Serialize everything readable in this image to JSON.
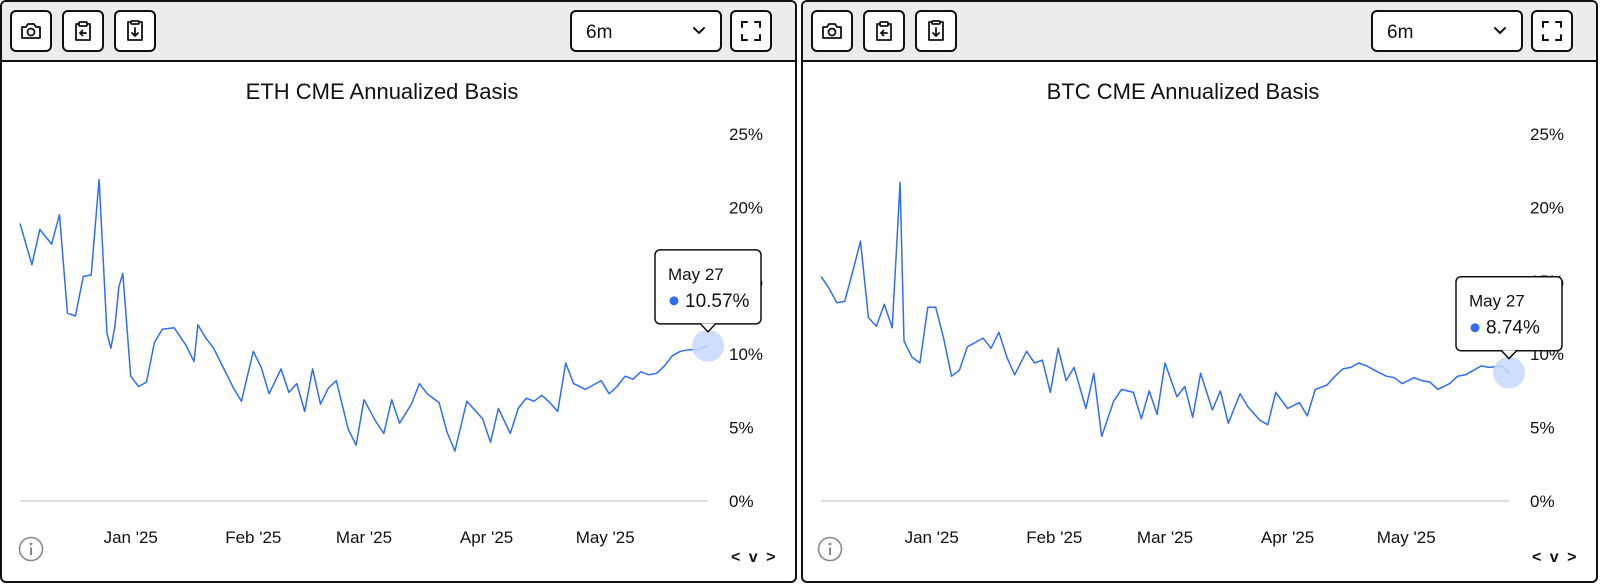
{
  "toolbar": {
    "icons": [
      "camera-icon",
      "clipboard-copy-icon",
      "file-download-icon",
      "fullscreen-icon"
    ],
    "range_select_value": "6m"
  },
  "footer": {
    "info_icon": "info-icon",
    "nav_label": "< v >"
  },
  "colors": {
    "line": "#2f6df5",
    "highlight": "#c7d8fb",
    "baseline": "#bbbbbb"
  },
  "chart_data": [
    {
      "type": "line",
      "title": "ETH CME Annualized Basis",
      "yticks": [
        "25%",
        "20%",
        "15%",
        "10%",
        "5%",
        "0%"
      ],
      "ylim": [
        0,
        25
      ],
      "xlim": [
        "2024-12-04",
        "2025-05-27"
      ],
      "xticks": [
        {
          "date": "2025-01-01",
          "label": "Jan '25"
        },
        {
          "date": "2025-02-01",
          "label": "Feb '25"
        },
        {
          "date": "2025-03-01",
          "label": "Mar '25"
        },
        {
          "date": "2025-04-01",
          "label": "Apr '25"
        },
        {
          "date": "2025-05-01",
          "label": "May '25"
        }
      ],
      "tooltip": {
        "date_label": "May 27",
        "value_label": "10.57%"
      },
      "series": [
        {
          "x": [
            "2024-12-04",
            "2024-12-07",
            "2024-12-09",
            "2024-12-12",
            "2024-12-14",
            "2024-12-16",
            "2024-12-18",
            "2024-12-20",
            "2024-12-22",
            "2024-12-24",
            "2024-12-26",
            "2024-12-27",
            "2024-12-28",
            "2024-12-29",
            "2024-12-30",
            "2025-01-01",
            "2025-01-03",
            "2025-01-05",
            "2025-01-07",
            "2025-01-09",
            "2025-01-12",
            "2025-01-15",
            "2025-01-17",
            "2025-01-18",
            "2025-01-20",
            "2025-01-22",
            "2025-01-24",
            "2025-01-27",
            "2025-01-29",
            "2025-02-01",
            "2025-02-03",
            "2025-02-05",
            "2025-02-08",
            "2025-02-10",
            "2025-02-12",
            "2025-02-14",
            "2025-02-16",
            "2025-02-18",
            "2025-02-20",
            "2025-02-22",
            "2025-02-25",
            "2025-02-27",
            "2025-03-01",
            "2025-03-04",
            "2025-03-06",
            "2025-03-08",
            "2025-03-10",
            "2025-03-13",
            "2025-03-15",
            "2025-03-17",
            "2025-03-20",
            "2025-03-22",
            "2025-03-24",
            "2025-03-27",
            "2025-03-29",
            "2025-03-31",
            "2025-04-02",
            "2025-04-04",
            "2025-04-07",
            "2025-04-09",
            "2025-04-11",
            "2025-04-13",
            "2025-04-15",
            "2025-04-17",
            "2025-04-19",
            "2025-04-21",
            "2025-04-23",
            "2025-04-26",
            "2025-04-28",
            "2025-04-30",
            "2025-05-02",
            "2025-05-04",
            "2025-05-06",
            "2025-05-08",
            "2025-05-10",
            "2025-05-12",
            "2025-05-14",
            "2025-05-16",
            "2025-05-18",
            "2025-05-20",
            "2025-05-22",
            "2025-05-24",
            "2025-05-27"
          ],
          "y": [
            18.9,
            16.1,
            18.5,
            17.5,
            19.5,
            12.8,
            12.6,
            15.3,
            15.4,
            21.9,
            11.4,
            10.4,
            11.9,
            14.6,
            15.5,
            8.5,
            7.8,
            8.1,
            10.8,
            11.7,
            11.8,
            10.6,
            9.5,
            12.0,
            11.1,
            10.4,
            9.3,
            7.7,
            6.8,
            10.2,
            9.1,
            7.3,
            9.0,
            7.4,
            8.0,
            6.1,
            9.0,
            6.6,
            7.7,
            8.2,
            4.9,
            3.8,
            6.9,
            5.4,
            4.6,
            6.9,
            5.3,
            6.6,
            8.0,
            7.3,
            6.7,
            4.7,
            3.4,
            6.8,
            6.2,
            5.6,
            4.0,
            6.3,
            4.6,
            6.3,
            7.0,
            6.8,
            7.2,
            6.7,
            6.1,
            9.4,
            8.0,
            7.6,
            7.9,
            8.2,
            7.3,
            7.8,
            8.5,
            8.3,
            8.8,
            8.6,
            8.7,
            9.2,
            9.9,
            10.2,
            10.3,
            10.3,
            10.57
          ]
        }
      ]
    },
    {
      "type": "line",
      "title": "BTC CME Annualized Basis",
      "yticks": [
        "25%",
        "20%",
        "15%",
        "10%",
        "5%",
        "0%"
      ],
      "ylim": [
        0,
        25
      ],
      "xlim": [
        "2024-12-04",
        "2025-05-27"
      ],
      "xticks": [
        {
          "date": "2025-01-01",
          "label": "Jan '25"
        },
        {
          "date": "2025-02-01",
          "label": "Feb '25"
        },
        {
          "date": "2025-03-01",
          "label": "Mar '25"
        },
        {
          "date": "2025-04-01",
          "label": "Apr '25"
        },
        {
          "date": "2025-05-01",
          "label": "May '25"
        }
      ],
      "tooltip": {
        "date_label": "May 27",
        "value_label": "8.74%"
      },
      "series": [
        {
          "x": [
            "2024-12-04",
            "2024-12-06",
            "2024-12-08",
            "2024-12-10",
            "2024-12-12",
            "2024-12-14",
            "2024-12-16",
            "2024-12-18",
            "2024-12-20",
            "2024-12-22",
            "2024-12-24",
            "2024-12-25",
            "2024-12-27",
            "2024-12-29",
            "2024-12-31",
            "2025-01-02",
            "2025-01-04",
            "2025-01-06",
            "2025-01-08",
            "2025-01-10",
            "2025-01-12",
            "2025-01-14",
            "2025-01-16",
            "2025-01-18",
            "2025-01-20",
            "2025-01-22",
            "2025-01-25",
            "2025-01-27",
            "2025-01-29",
            "2025-01-31",
            "2025-02-02",
            "2025-02-04",
            "2025-02-06",
            "2025-02-09",
            "2025-02-11",
            "2025-02-13",
            "2025-02-16",
            "2025-02-18",
            "2025-02-21",
            "2025-02-23",
            "2025-02-25",
            "2025-02-27",
            "2025-03-01",
            "2025-03-04",
            "2025-03-06",
            "2025-03-08",
            "2025-03-10",
            "2025-03-13",
            "2025-03-15",
            "2025-03-17",
            "2025-03-20",
            "2025-03-22",
            "2025-03-25",
            "2025-03-27",
            "2025-03-29",
            "2025-04-01",
            "2025-04-04",
            "2025-04-06",
            "2025-04-08",
            "2025-04-11",
            "2025-04-13",
            "2025-04-15",
            "2025-04-17",
            "2025-04-19",
            "2025-04-21",
            "2025-04-23",
            "2025-04-26",
            "2025-04-28",
            "2025-04-30",
            "2025-05-03",
            "2025-05-05",
            "2025-05-07",
            "2025-05-09",
            "2025-05-12",
            "2025-05-14",
            "2025-05-16",
            "2025-05-18",
            "2025-05-20",
            "2025-05-22",
            "2025-05-25",
            "2025-05-27"
          ],
          "y": [
            15.3,
            14.5,
            13.5,
            13.6,
            15.6,
            17.7,
            12.5,
            11.9,
            13.4,
            11.8,
            21.7,
            10.9,
            9.8,
            9.4,
            13.2,
            13.2,
            11.1,
            8.5,
            8.9,
            10.5,
            10.8,
            11.1,
            10.4,
            11.5,
            9.8,
            8.6,
            10.2,
            9.4,
            9.6,
            7.4,
            10.4,
            8.2,
            9.1,
            6.3,
            8.7,
            4.4,
            6.8,
            7.6,
            7.4,
            5.6,
            7.5,
            5.9,
            9.4,
            7.1,
            7.8,
            5.7,
            8.7,
            6.2,
            7.5,
            5.3,
            7.3,
            6.4,
            5.5,
            5.2,
            7.4,
            6.3,
            6.7,
            5.8,
            7.6,
            7.9,
            8.5,
            9.0,
            9.1,
            9.4,
            9.2,
            8.9,
            8.5,
            8.4,
            8.0,
            8.4,
            8.2,
            8.1,
            7.6,
            8.0,
            8.5,
            8.6,
            8.9,
            9.2,
            9.1,
            9.2,
            8.74
          ]
        }
      ]
    }
  ]
}
